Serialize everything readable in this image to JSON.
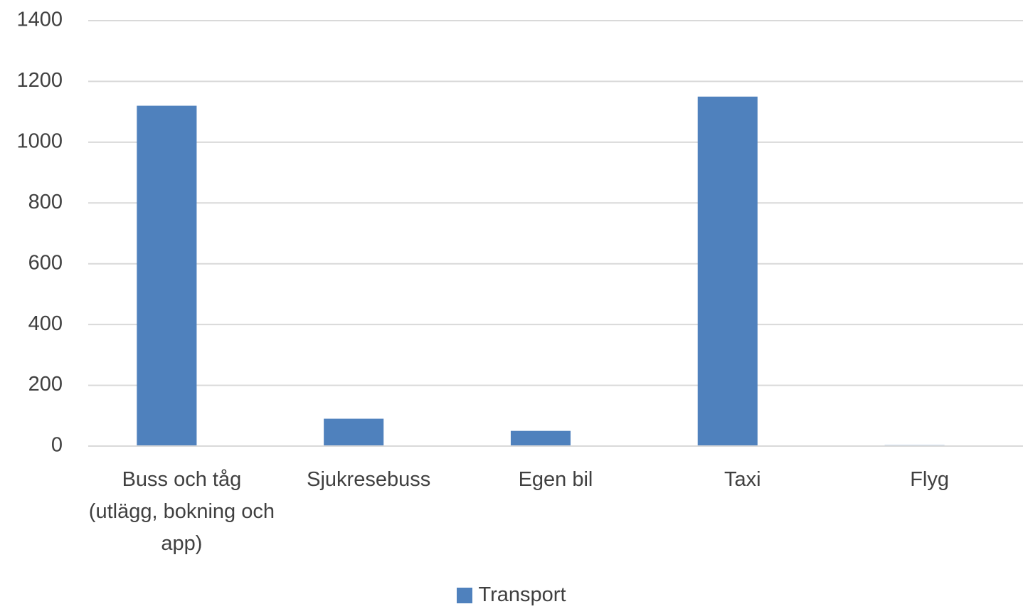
{
  "chart_data": {
    "type": "bar",
    "categories": [
      "Buss och tåg (utlägg, bokning och app)",
      "Sjukresebuss",
      "Egen bil",
      "Taxi",
      "Flyg"
    ],
    "series": [
      {
        "name": "Transport",
        "color": "#4f81bd",
        "values": [
          1120,
          90,
          50,
          1150,
          3
        ]
      }
    ],
    "ylim": [
      0,
      1400
    ],
    "yticks": [
      0,
      200,
      400,
      600,
      800,
      1000,
      1200,
      1400
    ],
    "grid": true,
    "legend": "bottom"
  }
}
